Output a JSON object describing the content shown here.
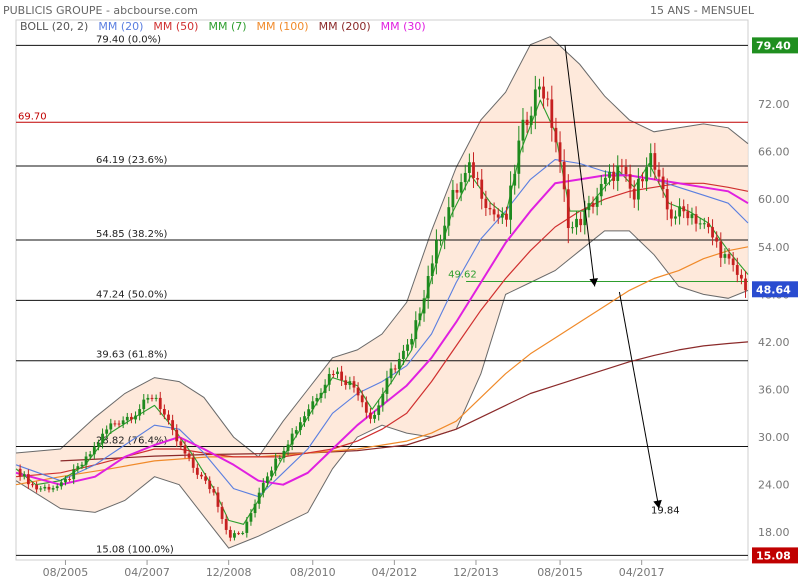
{
  "header": {
    "title": "PUBLICIS GROUPE - abcbourse.com",
    "period": "15 ANS - MENSUEL"
  },
  "chart_data": {
    "type": "candlestick",
    "legend": [
      {
        "label": "BOLL (20, 2)",
        "color": "#555555"
      },
      {
        "label": "MM (20)",
        "color": "#5b7fe0"
      },
      {
        "label": "MM (50)",
        "color": "#d03030"
      },
      {
        "label": "MM (7)",
        "color": "#2e9e2e"
      },
      {
        "label": "MM (100)",
        "color": "#f08a2a"
      },
      {
        "label": "MM (200)",
        "color": "#8b2a2a"
      },
      {
        "label": "MM (30)",
        "color": "#e020e0"
      }
    ],
    "x_ticks": [
      "08/2005",
      "04/2007",
      "12/2008",
      "08/2010",
      "04/2012",
      "12/2013",
      "08/2015",
      "04/2017"
    ],
    "x_tick_dates": [
      2005.6,
      2007.25,
      2008.9,
      2010.6,
      2012.25,
      2013.9,
      2015.6,
      2017.25
    ],
    "x_range": [
      2004.6,
      2019.4
    ],
    "y_ticks": [
      "18.00",
      "24.00",
      "30.00",
      "36.00",
      "42.00",
      "48.00",
      "54.00",
      "60.00",
      "66.00",
      "72.00"
    ],
    "y_range": [
      14.5,
      82.6
    ],
    "fibonacci": [
      {
        "label": "79.40  (0.0%)",
        "value": 79.4
      },
      {
        "label": "64.19  (23.6%)",
        "value": 64.19
      },
      {
        "label": "54.85  (38.2%)",
        "value": 54.85
      },
      {
        "label": "47.24  (50.0%)",
        "value": 47.24
      },
      {
        "label": "39.63  (61.8%)",
        "value": 39.63
      },
      {
        "label": "28.82  (76.4%)",
        "value": 28.82
      },
      {
        "label": "15.08  (100.0%)",
        "value": 15.08
      }
    ],
    "resistance": {
      "label": "69.70",
      "value": 69.7,
      "color": "#c00000"
    },
    "support": {
      "label": "49.62",
      "value": 49.62,
      "color": "#2e9e2e"
    },
    "target": {
      "label": "19.84",
      "value": 19.84
    },
    "price_badges": [
      {
        "label": "79.40",
        "value": 79.4,
        "color": "#1f8f1f"
      },
      {
        "label": "48.64",
        "value": 48.64,
        "color": "#2a4cd0"
      },
      {
        "label": "15.08",
        "value": 15.08,
        "color": "#c00000"
      }
    ],
    "arrows": [
      {
        "from": [
          2015.7,
          79.4
        ],
        "to": [
          2016.3,
          49.0
        ]
      },
      {
        "from": [
          2016.8,
          48.3
        ],
        "to": [
          2017.6,
          21.0
        ]
      }
    ],
    "close_series": [
      [
        2004.6,
        26.0
      ],
      [
        2005.0,
        23.5
      ],
      [
        2005.5,
        23.8
      ],
      [
        2006.0,
        27.0
      ],
      [
        2006.5,
        31.5
      ],
      [
        2007.0,
        33.0
      ],
      [
        2007.4,
        35.5
      ],
      [
        2007.8,
        30.0
      ],
      [
        2008.2,
        26.0
      ],
      [
        2008.6,
        23.0
      ],
      [
        2008.9,
        17.5
      ],
      [
        2009.2,
        18.0
      ],
      [
        2009.6,
        24.5
      ],
      [
        2010.0,
        28.5
      ],
      [
        2010.5,
        33.5
      ],
      [
        2011.0,
        38.5
      ],
      [
        2011.5,
        36.0
      ],
      [
        2011.8,
        32.0
      ],
      [
        2012.2,
        38.5
      ],
      [
        2012.6,
        42.0
      ],
      [
        2013.0,
        52.0
      ],
      [
        2013.4,
        60.0
      ],
      [
        2013.8,
        64.0
      ],
      [
        2014.2,
        58.5
      ],
      [
        2014.5,
        57.0
      ],
      [
        2014.8,
        68.0
      ],
      [
        2015.2,
        75.0
      ],
      [
        2015.5,
        68.0
      ],
      [
        2015.8,
        56.0
      ],
      [
        2016.1,
        58.0
      ],
      [
        2016.5,
        62.0
      ],
      [
        2016.8,
        64.0
      ],
      [
        2017.1,
        60.0
      ],
      [
        2017.4,
        66.0
      ],
      [
        2017.8,
        58.0
      ],
      [
        2018.2,
        58.5
      ],
      [
        2018.6,
        56.0
      ],
      [
        2019.0,
        52.0
      ],
      [
        2019.4,
        48.64
      ]
    ],
    "bollinger_upper": [
      [
        2004.6,
        28.0
      ],
      [
        2005.5,
        28.5
      ],
      [
        2006.2,
        32.5
      ],
      [
        2006.8,
        35.5
      ],
      [
        2007.4,
        37.5
      ],
      [
        2007.9,
        37.0
      ],
      [
        2008.4,
        35.0
      ],
      [
        2009.0,
        30.0
      ],
      [
        2009.5,
        27.5
      ],
      [
        2010.0,
        32.0
      ],
      [
        2010.5,
        36.0
      ],
      [
        2011.0,
        40.0
      ],
      [
        2011.5,
        41.0
      ],
      [
        2012.0,
        43.0
      ],
      [
        2012.5,
        47.0
      ],
      [
        2013.0,
        56.0
      ],
      [
        2013.5,
        64.0
      ],
      [
        2014.0,
        70.0
      ],
      [
        2014.5,
        73.5
      ],
      [
        2015.0,
        79.5
      ],
      [
        2015.4,
        80.5
      ],
      [
        2016.0,
        77.0
      ],
      [
        2016.5,
        73.0
      ],
      [
        2017.0,
        70.0
      ],
      [
        2017.5,
        68.5
      ],
      [
        2018.0,
        69.0
      ],
      [
        2018.5,
        69.5
      ],
      [
        2019.0,
        69.0
      ],
      [
        2019.4,
        67.0
      ]
    ],
    "bollinger_lower": [
      [
        2004.6,
        24.5
      ],
      [
        2005.5,
        21.0
      ],
      [
        2006.2,
        20.5
      ],
      [
        2006.8,
        22.0
      ],
      [
        2007.4,
        25.0
      ],
      [
        2007.9,
        24.0
      ],
      [
        2008.4,
        20.0
      ],
      [
        2008.9,
        16.0
      ],
      [
        2009.5,
        17.5
      ],
      [
        2010.0,
        19.0
      ],
      [
        2010.5,
        20.5
      ],
      [
        2011.0,
        26.0
      ],
      [
        2011.5,
        30.0
      ],
      [
        2012.0,
        31.5
      ],
      [
        2012.5,
        30.5
      ],
      [
        2013.0,
        30.0
      ],
      [
        2013.5,
        31.0
      ],
      [
        2014.0,
        38.0
      ],
      [
        2014.5,
        48.0
      ],
      [
        2015.0,
        49.5
      ],
      [
        2015.5,
        51.0
      ],
      [
        2016.0,
        53.5
      ],
      [
        2016.5,
        56.0
      ],
      [
        2017.0,
        56.0
      ],
      [
        2017.5,
        53.0
      ],
      [
        2018.0,
        49.0
      ],
      [
        2018.5,
        48.0
      ],
      [
        2019.0,
        47.5
      ],
      [
        2019.4,
        48.5
      ]
    ],
    "ma7": [
      [
        2004.6,
        26.0
      ],
      [
        2005.0,
        24.0
      ],
      [
        2005.5,
        24.5
      ],
      [
        2006.0,
        26.5
      ],
      [
        2006.5,
        30.5
      ],
      [
        2007.0,
        32.5
      ],
      [
        2007.4,
        34.0
      ],
      [
        2007.8,
        31.0
      ],
      [
        2008.2,
        27.5
      ],
      [
        2008.6,
        23.5
      ],
      [
        2008.9,
        19.5
      ],
      [
        2009.2,
        19.0
      ],
      [
        2009.6,
        23.0
      ],
      [
        2010.0,
        27.5
      ],
      [
        2010.5,
        32.5
      ],
      [
        2011.0,
        37.5
      ],
      [
        2011.5,
        36.5
      ],
      [
        2011.8,
        33.5
      ],
      [
        2012.2,
        37.0
      ],
      [
        2012.6,
        41.0
      ],
      [
        2013.0,
        50.0
      ],
      [
        2013.4,
        58.0
      ],
      [
        2013.8,
        63.0
      ],
      [
        2014.2,
        59.5
      ],
      [
        2014.5,
        58.0
      ],
      [
        2014.8,
        66.0
      ],
      [
        2015.2,
        72.5
      ],
      [
        2015.5,
        68.5
      ],
      [
        2015.8,
        58.5
      ],
      [
        2016.1,
        58.5
      ],
      [
        2016.5,
        61.5
      ],
      [
        2016.8,
        63.5
      ],
      [
        2017.1,
        61.5
      ],
      [
        2017.4,
        64.5
      ],
      [
        2017.8,
        59.5
      ],
      [
        2018.2,
        58.5
      ],
      [
        2018.6,
        57.0
      ],
      [
        2019.0,
        53.5
      ],
      [
        2019.4,
        50.5
      ]
    ],
    "ma20": [
      [
        2004.6,
        26.5
      ],
      [
        2005.5,
        24.5
      ],
      [
        2006.2,
        26.5
      ],
      [
        2006.8,
        29.0
      ],
      [
        2007.4,
        31.5
      ],
      [
        2007.9,
        31.0
      ],
      [
        2008.4,
        28.0
      ],
      [
        2009.0,
        23.5
      ],
      [
        2009.5,
        22.5
      ],
      [
        2010.0,
        25.5
      ],
      [
        2010.5,
        28.5
      ],
      [
        2011.0,
        33.0
      ],
      [
        2011.5,
        35.5
      ],
      [
        2012.0,
        37.0
      ],
      [
        2012.5,
        39.0
      ],
      [
        2013.0,
        43.0
      ],
      [
        2013.5,
        49.5
      ],
      [
        2014.0,
        55.0
      ],
      [
        2014.5,
        58.5
      ],
      [
        2015.0,
        62.5
      ],
      [
        2015.5,
        65.0
      ],
      [
        2016.0,
        64.5
      ],
      [
        2016.5,
        63.5
      ],
      [
        2017.0,
        63.0
      ],
      [
        2017.5,
        62.5
      ],
      [
        2018.0,
        61.5
      ],
      [
        2018.5,
        60.5
      ],
      [
        2019.0,
        59.5
      ],
      [
        2019.4,
        57.0
      ]
    ],
    "ma30": [
      [
        2004.6,
        25.5
      ],
      [
        2005.5,
        24.0
      ],
      [
        2006.2,
        25.0
      ],
      [
        2006.8,
        27.5
      ],
      [
        2007.4,
        29.0
      ],
      [
        2007.9,
        30.0
      ],
      [
        2008.4,
        28.5
      ],
      [
        2009.0,
        26.5
      ],
      [
        2009.5,
        24.5
      ],
      [
        2010.0,
        24.0
      ],
      [
        2010.5,
        25.5
      ],
      [
        2011.0,
        28.5
      ],
      [
        2011.5,
        31.5
      ],
      [
        2012.0,
        34.0
      ],
      [
        2012.5,
        36.5
      ],
      [
        2013.0,
        40.0
      ],
      [
        2013.5,
        44.5
      ],
      [
        2014.0,
        49.5
      ],
      [
        2014.5,
        54.5
      ],
      [
        2015.0,
        58.5
      ],
      [
        2015.5,
        62.0
      ],
      [
        2016.0,
        62.5
      ],
      [
        2016.5,
        63.0
      ],
      [
        2017.0,
        63.0
      ],
      [
        2017.5,
        62.5
      ],
      [
        2018.0,
        62.0
      ],
      [
        2018.5,
        61.5
      ],
      [
        2019.0,
        61.0
      ],
      [
        2019.4,
        59.5
      ]
    ],
    "ma50": [
      [
        2004.6,
        25.0
      ],
      [
        2005.5,
        25.5
      ],
      [
        2006.2,
        26.5
      ],
      [
        2006.8,
        27.5
      ],
      [
        2007.4,
        28.5
      ],
      [
        2007.9,
        28.5
      ],
      [
        2008.4,
        28.0
      ],
      [
        2009.0,
        27.5
      ],
      [
        2009.5,
        27.5
      ],
      [
        2010.0,
        27.5
      ],
      [
        2010.5,
        28.0
      ],
      [
        2011.0,
        28.5
      ],
      [
        2011.5,
        29.5
      ],
      [
        2012.0,
        31.0
      ],
      [
        2012.5,
        33.0
      ],
      [
        2013.0,
        37.0
      ],
      [
        2013.5,
        41.5
      ],
      [
        2014.0,
        46.0
      ],
      [
        2014.5,
        50.0
      ],
      [
        2015.0,
        53.5
      ],
      [
        2015.5,
        56.5
      ],
      [
        2016.0,
        58.5
      ],
      [
        2016.5,
        60.0
      ],
      [
        2017.0,
        61.0
      ],
      [
        2017.5,
        61.5
      ],
      [
        2018.0,
        62.0
      ],
      [
        2018.5,
        62.0
      ],
      [
        2019.0,
        61.5
      ],
      [
        2019.4,
        61.0
      ]
    ],
    "ma100": [
      [
        2004.6,
        24.0
      ],
      [
        2005.5,
        25.0
      ],
      [
        2006.5,
        26.0
      ],
      [
        2007.4,
        27.0
      ],
      [
        2008.5,
        27.5
      ],
      [
        2009.5,
        27.5
      ],
      [
        2010.5,
        28.0
      ],
      [
        2011.5,
        28.5
      ],
      [
        2012.5,
        29.5
      ],
      [
        2013.0,
        30.5
      ],
      [
        2013.5,
        32.0
      ],
      [
        2014.0,
        35.0
      ],
      [
        2014.5,
        38.0
      ],
      [
        2015.0,
        40.5
      ],
      [
        2015.5,
        42.5
      ],
      [
        2016.0,
        44.5
      ],
      [
        2016.5,
        46.5
      ],
      [
        2017.0,
        48.5
      ],
      [
        2017.5,
        50.0
      ],
      [
        2018.0,
        51.0
      ],
      [
        2018.5,
        52.5
      ],
      [
        2019.0,
        53.5
      ],
      [
        2019.4,
        54.0
      ]
    ],
    "ma200": [
      [
        2005.5,
        27.0
      ],
      [
        2006.5,
        27.3
      ],
      [
        2007.4,
        27.6
      ],
      [
        2008.5,
        27.8
      ],
      [
        2009.5,
        27.9
      ],
      [
        2010.5,
        28.0
      ],
      [
        2011.5,
        28.3
      ],
      [
        2012.5,
        29.0
      ],
      [
        2013.5,
        31.0
      ],
      [
        2014.0,
        32.5
      ],
      [
        2014.5,
        34.0
      ],
      [
        2015.0,
        35.5
      ],
      [
        2015.5,
        36.5
      ],
      [
        2016.0,
        37.5
      ],
      [
        2016.5,
        38.5
      ],
      [
        2017.0,
        39.5
      ],
      [
        2017.5,
        40.3
      ],
      [
        2018.0,
        41.0
      ],
      [
        2018.5,
        41.5
      ],
      [
        2019.0,
        41.8
      ],
      [
        2019.4,
        42.0
      ]
    ]
  }
}
